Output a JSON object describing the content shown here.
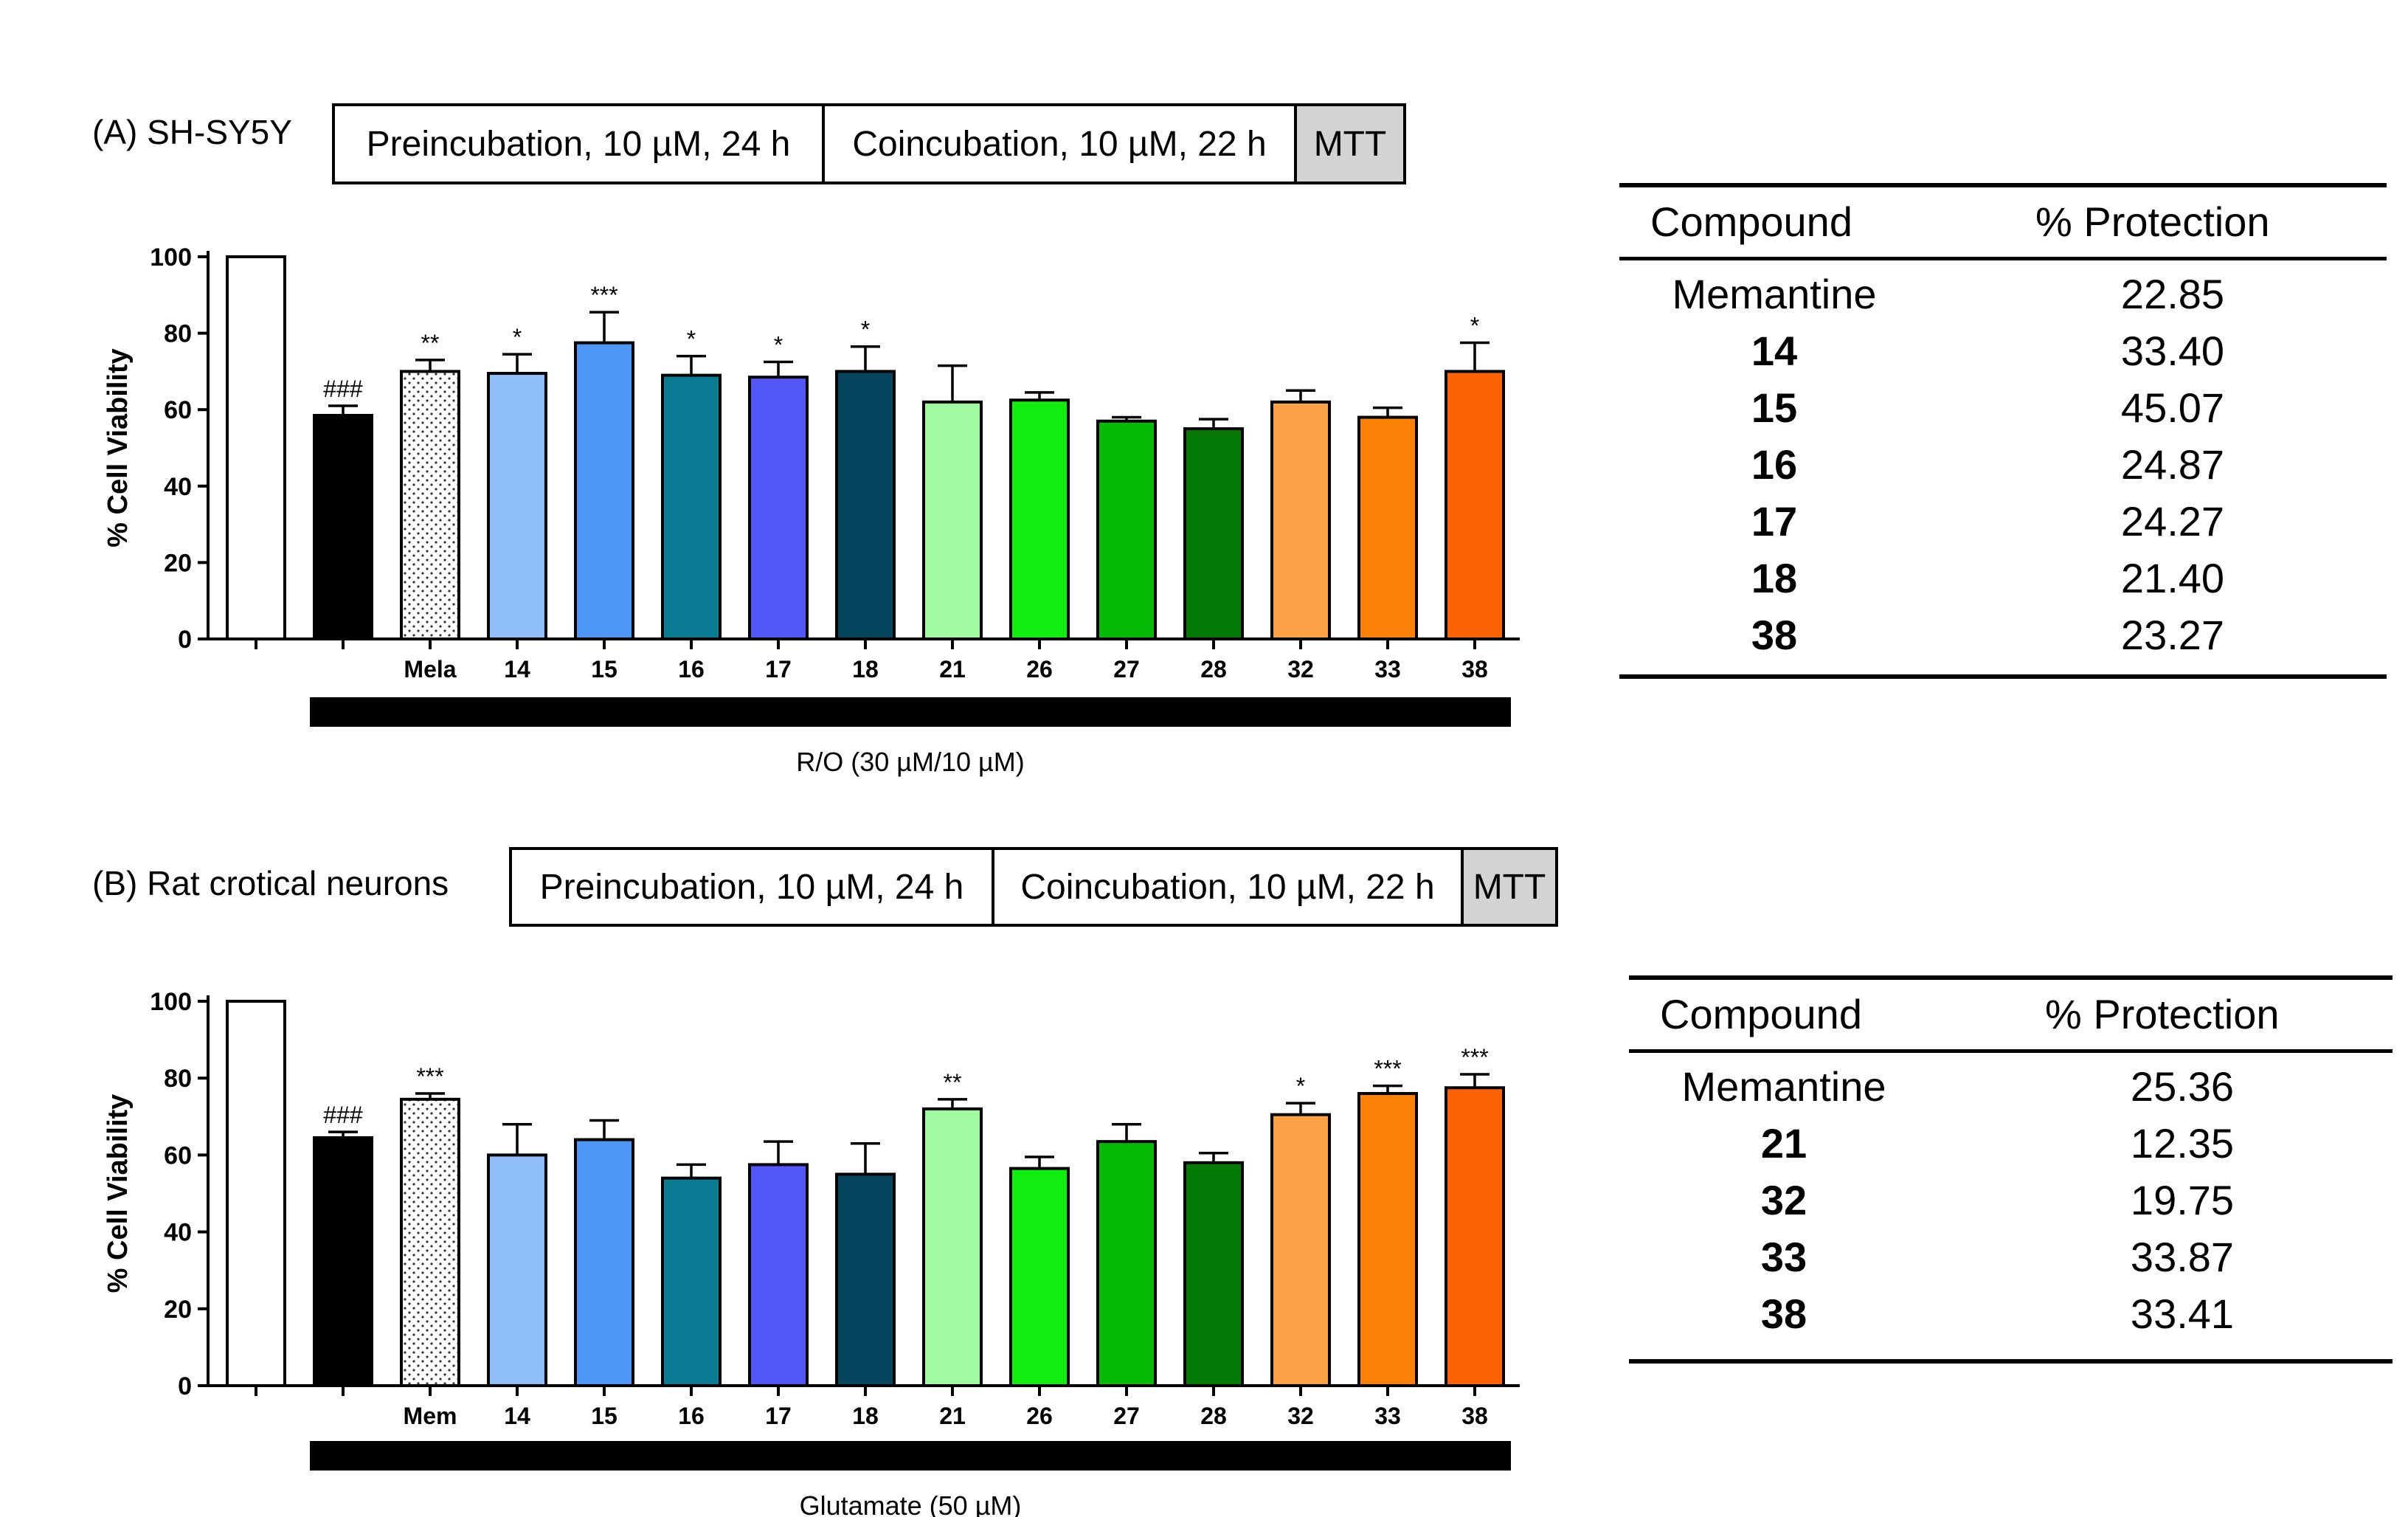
{
  "panels": [
    {
      "label": "(A) SH-SY5Y",
      "protocol": [
        "Preincubation, 10 µM, 24 h",
        "Coincubation, 10 µM, 22 h",
        "MTT"
      ],
      "chart_data": {
        "type": "bar",
        "ylabel": "% Cell Viability",
        "ylim": [
          0,
          100
        ],
        "yticks": [
          "0",
          "20",
          "40",
          "60",
          "80",
          "100"
        ],
        "categories": [
          "",
          "",
          "Mela",
          "14",
          "15",
          "16",
          "17",
          "18",
          "21",
          "26",
          "27",
          "28",
          "32",
          "33",
          "38"
        ],
        "values": [
          100,
          58.5,
          70,
          69.5,
          77.5,
          69,
          68.5,
          70,
          62,
          62.5,
          57,
          55,
          62,
          58,
          70
        ],
        "errors": [
          0,
          2.5,
          3,
          5,
          8,
          5,
          4,
          6.5,
          9.5,
          2,
          1,
          2.5,
          3,
          2.5,
          7.5
        ],
        "marks": [
          "",
          "###",
          "**",
          "*",
          "***",
          "*",
          "*",
          "*",
          "",
          "",
          "",
          "",
          "",
          "",
          "*"
        ],
        "colors": [
          "#ffffff",
          "#000000",
          "dots",
          "#8fbdfa",
          "#4f97f7",
          "#0b7a93",
          "#5457f7",
          "#05465e",
          "#a0fba0",
          "#10ee10",
          "#06bb06",
          "#067a06",
          "#fba246",
          "#fb8006",
          "#fc6201"
        ],
        "treatment": "R/O (30 µM/10 µM)"
      },
      "table": {
        "headers": [
          "Compound",
          "% Protection"
        ],
        "rows": [
          {
            "compound": "Memantine",
            "value": "22.85"
          },
          {
            "compound": "14",
            "value": "33.40"
          },
          {
            "compound": "15",
            "value": "45.07"
          },
          {
            "compound": "16",
            "value": "24.87"
          },
          {
            "compound": "17",
            "value": "24.27"
          },
          {
            "compound": "18",
            "value": "21.40"
          },
          {
            "compound": "38",
            "value": "23.27"
          }
        ]
      }
    },
    {
      "label": "(B) Rat crotical neurons",
      "protocol": [
        "Preincubation, 10 µM, 24 h",
        "Coincubation, 10 µM, 22 h",
        "MTT"
      ],
      "chart_data": {
        "type": "bar",
        "ylabel": "% Cell Viability",
        "ylim": [
          0,
          100
        ],
        "yticks": [
          "0",
          "20",
          "40",
          "60",
          "80",
          "100"
        ],
        "categories": [
          "",
          "",
          "Mem",
          "14",
          "15",
          "16",
          "17",
          "18",
          "21",
          "26",
          "27",
          "28",
          "32",
          "33",
          "38"
        ],
        "values": [
          100,
          64.5,
          74.5,
          60,
          64,
          54,
          57.5,
          55,
          72,
          56.5,
          63.5,
          58,
          70.5,
          76,
          77.5
        ],
        "errors": [
          0,
          1.5,
          1.5,
          8,
          5,
          3.5,
          6,
          8,
          2.5,
          3,
          4.5,
          2.5,
          3,
          2,
          3.5
        ],
        "marks": [
          "",
          "###",
          "***",
          "",
          "",
          "",
          "",
          "",
          "**",
          "",
          "",
          "",
          "*",
          "***",
          "***"
        ],
        "colors": [
          "#ffffff",
          "#000000",
          "dots",
          "#8fbdfa",
          "#4f97f7",
          "#0b7a93",
          "#5457f7",
          "#05465e",
          "#a0fba0",
          "#10ee10",
          "#06bb06",
          "#067a06",
          "#fba246",
          "#fb8006",
          "#fc6201"
        ],
        "treatment": "Glutamate (50 µM)"
      },
      "table": {
        "headers": [
          "Compound",
          "% Protection"
        ],
        "rows": [
          {
            "compound": "Memantine",
            "value": "25.36"
          },
          {
            "compound": "21",
            "value": "12.35"
          },
          {
            "compound": "32",
            "value": "19.75"
          },
          {
            "compound": "33",
            "value": "33.87"
          },
          {
            "compound": "38",
            "value": "33.41"
          }
        ]
      }
    }
  ]
}
